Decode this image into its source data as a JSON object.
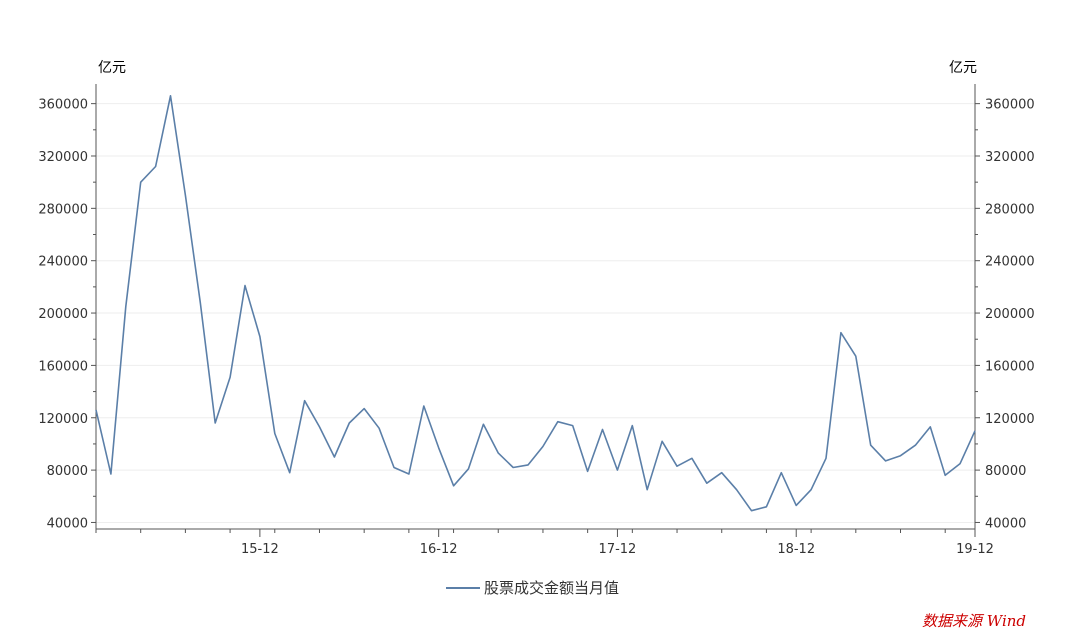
{
  "chart_data": {
    "type": "line",
    "title": "",
    "y_unit_left": "亿元",
    "y_unit_right": "亿元",
    "ylim": [
      35000,
      375000
    ],
    "yticks": [
      40000,
      80000,
      120000,
      160000,
      200000,
      240000,
      280000,
      320000,
      360000
    ],
    "xticks": [
      "15-12",
      "16-12",
      "17-12",
      "18-12",
      "19-12"
    ],
    "xlim_months": [
      0,
      59
    ],
    "grid": true,
    "legend_position": "bottom",
    "series": [
      {
        "name": "股票成交金额当月值",
        "color": "#5b7fa8",
        "x": [
          "2015-01",
          "2015-02",
          "2015-03",
          "2015-04",
          "2015-05",
          "2015-06",
          "2015-07",
          "2015-08",
          "2015-09",
          "2015-10",
          "2015-11",
          "2015-12",
          "2016-01",
          "2016-02",
          "2016-03",
          "2016-04",
          "2016-05",
          "2016-06",
          "2016-07",
          "2016-08",
          "2016-09",
          "2016-10",
          "2016-11",
          "2016-12",
          "2017-01",
          "2017-02",
          "2017-03",
          "2017-04",
          "2017-05",
          "2017-06",
          "2017-07",
          "2017-08",
          "2017-09",
          "2017-10",
          "2017-11",
          "2017-12",
          "2018-01",
          "2018-02",
          "2018-03",
          "2018-04",
          "2018-05",
          "2018-06",
          "2018-07",
          "2018-08",
          "2018-09",
          "2018-10",
          "2018-11",
          "2018-12",
          "2019-01",
          "2019-02",
          "2019-03",
          "2019-04",
          "2019-05",
          "2019-06",
          "2019-07",
          "2019-08",
          "2019-09",
          "2019-10",
          "2019-11",
          "2019-12"
        ],
        "values": [
          126000,
          77000,
          205000,
          300000,
          312000,
          366000,
          290000,
          208000,
          116000,
          151000,
          221000,
          182000,
          108000,
          78000,
          133000,
          113000,
          90000,
          116000,
          127000,
          112000,
          82000,
          77000,
          129000,
          97000,
          68000,
          81000,
          115000,
          93000,
          82000,
          84000,
          98000,
          117000,
          114000,
          79000,
          111000,
          80000,
          114000,
          65000,
          102000,
          83000,
          89000,
          70000,
          78000,
          65000,
          49000,
          52000,
          78000,
          53000,
          65000,
          89000,
          185000,
          167000,
          99000,
          87000,
          91000,
          99000,
          113000,
          76000,
          85000,
          110000
        ]
      }
    ]
  },
  "legend": {
    "label": "股票成交金额当月值"
  },
  "source": "数据来源 Wind"
}
